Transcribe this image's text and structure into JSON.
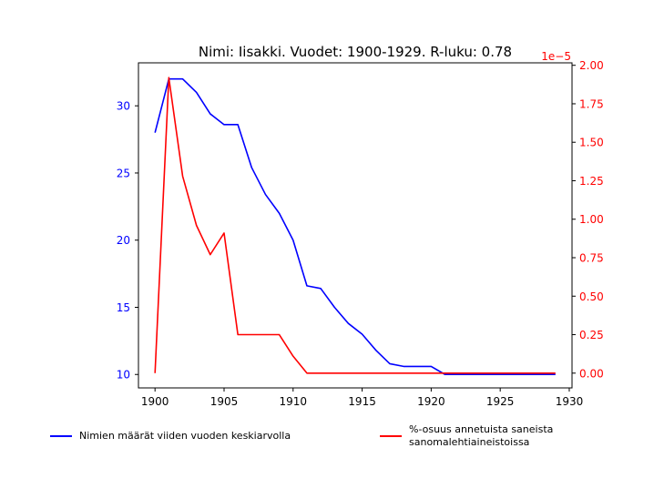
{
  "chart_data": {
    "type": "line",
    "title": "Nimi: Iisakki. Vuodet: 1900-1929. R-luku: 0.78",
    "x": [
      1900,
      1901,
      1902,
      1903,
      1904,
      1905,
      1906,
      1907,
      1908,
      1909,
      1910,
      1911,
      1912,
      1913,
      1914,
      1915,
      1916,
      1917,
      1918,
      1919,
      1920,
      1921,
      1922,
      1923,
      1924,
      1925,
      1926,
      1927,
      1928,
      1929
    ],
    "xlim": [
      1898.8,
      1930.2
    ],
    "x_ticks": [
      1900,
      1905,
      1910,
      1915,
      1920,
      1925,
      1930
    ],
    "left_axis": {
      "color": "#0000ff",
      "ylim": [
        9.0,
        33.2
      ],
      "ticks": [
        10,
        15,
        20,
        25,
        30
      ]
    },
    "right_axis": {
      "color": "#ff0000",
      "ylim": [
        -0.096,
        2.016
      ],
      "ticks": [
        "0.00",
        "0.25",
        "0.50",
        "0.75",
        "1.00",
        "1.25",
        "1.50",
        "1.75",
        "2.00"
      ],
      "offset_label": "1e−5"
    },
    "series": [
      {
        "name": "Nimien määrät viiden vuoden keskiarvolla",
        "axis": "left",
        "color": "#0000ff",
        "values": [
          28.0,
          32.0,
          32.0,
          31.0,
          29.4,
          28.6,
          28.6,
          25.4,
          23.4,
          22.0,
          20.0,
          16.6,
          16.4,
          15.0,
          13.8,
          13.0,
          11.8,
          10.8,
          10.6,
          10.6,
          10.6,
          10.0,
          10.0,
          10.0,
          10.0,
          10.0,
          10.0,
          10.0,
          10.0,
          10.0
        ]
      },
      {
        "name": "%-osuus annetuista saneista\n sanomalehtiaineistoissa",
        "axis": "right",
        "color": "#ff0000",
        "values": [
          0.0,
          1.92,
          1.28,
          0.96,
          0.77,
          0.91,
          0.25,
          0.25,
          0.25,
          0.25,
          0.11,
          0.0,
          0.0,
          0.0,
          0.0,
          0.0,
          0.0,
          0.0,
          0.0,
          0.0,
          0.0,
          0.0,
          0.0,
          0.0,
          0.0,
          0.0,
          0.0,
          0.0,
          0.0,
          0.0
        ]
      }
    ],
    "legend_position": "below"
  }
}
